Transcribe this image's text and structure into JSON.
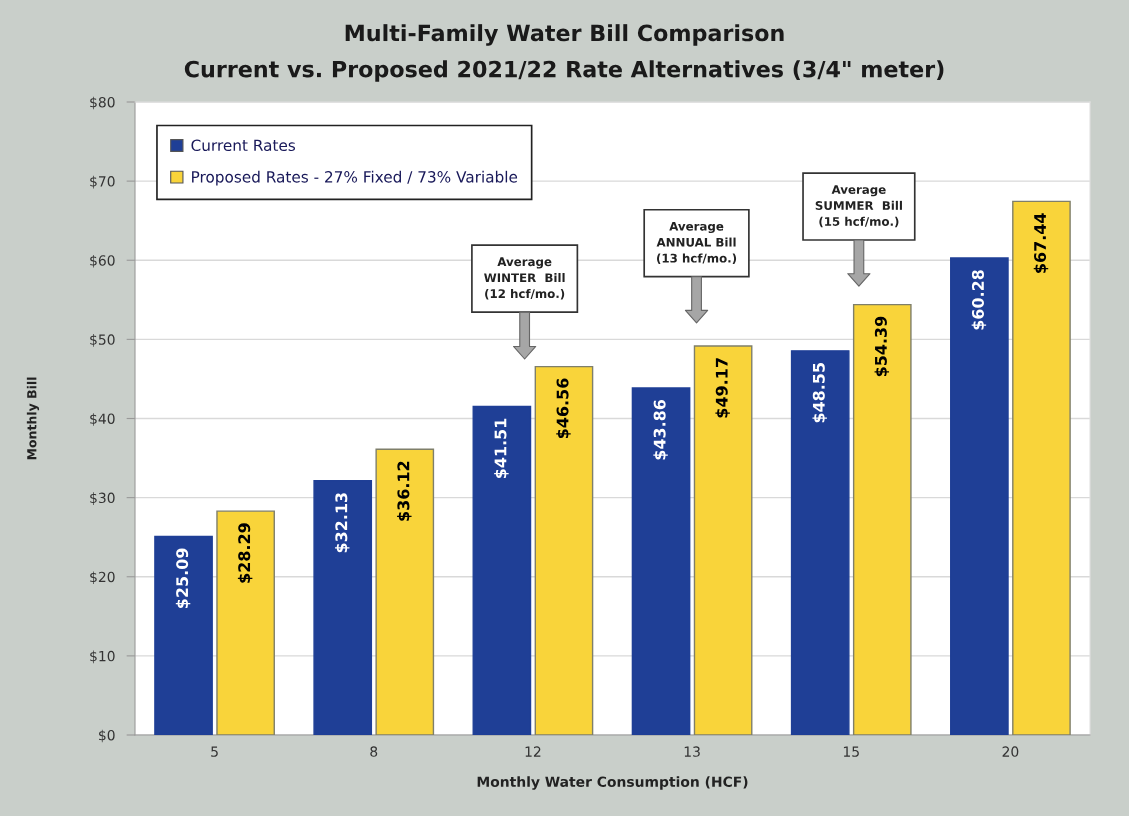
{
  "chart_data": {
    "type": "bar",
    "title": "Multi-Family Water Bill Comparison",
    "subtitle": "Current vs. Proposed 2021/22 Rate Alternatives (3/4\" meter)",
    "xlabel": "Monthly Water Consumption (HCF)",
    "ylabel": "Monthly Bill",
    "categories": [
      "5",
      "8",
      "12",
      "13",
      "15",
      "20"
    ],
    "series": [
      {
        "name": "Current Rates",
        "color": "#1f3f96",
        "values": [
          25.09,
          32.13,
          41.51,
          43.86,
          48.55,
          60.28
        ],
        "value_labels": [
          "$25.09",
          "$32.13",
          "$41.51",
          "$43.86",
          "$48.55",
          "$60.28"
        ]
      },
      {
        "name": "Proposed Rates - 27% Fixed / 73% Variable",
        "color": "#f9d43a",
        "values": [
          28.29,
          36.12,
          46.56,
          49.17,
          54.39,
          67.44
        ],
        "value_labels": [
          "$28.29",
          "$36.12",
          "$46.56",
          "$49.17",
          "$54.39",
          "$67.44"
        ]
      }
    ],
    "ylim": [
      0,
      80
    ],
    "yticks": [
      {
        "value": 0,
        "label": "$0"
      },
      {
        "value": 10,
        "label": "$10"
      },
      {
        "value": 20,
        "label": "$20"
      },
      {
        "value": 30,
        "label": "$30"
      },
      {
        "value": 40,
        "label": "$40"
      },
      {
        "value": 50,
        "label": "$50"
      },
      {
        "value": 60,
        "label": "$60"
      },
      {
        "value": 70,
        "label": "$70"
      },
      {
        "value": 80,
        "label": "$80"
      }
    ],
    "grid": "y",
    "legend": "top left",
    "annotations": [
      "Average\nWINTER  Bill\n(12 hcf/mo.)",
      "Average\nANNUAL Bill\n(13 hcf/mo.)",
      "Average\nSUMMER  Bill\n(15 hcf/mo.)"
    ]
  }
}
